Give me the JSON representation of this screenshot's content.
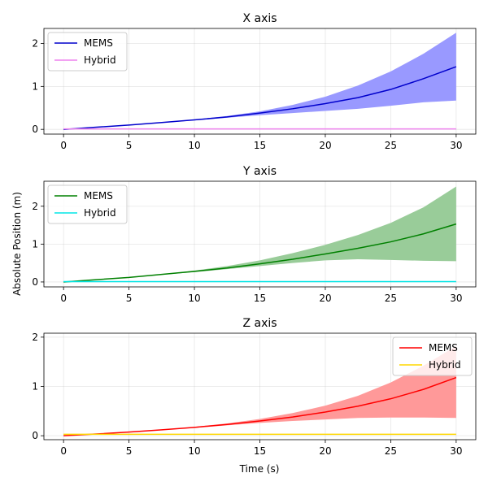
{
  "figure": {
    "ylabel": "Absolute Position (m)",
    "xlabel": "Time (s)"
  },
  "chart_data": [
    {
      "type": "line",
      "title": "X axis",
      "xlabel": "",
      "ylabel": "",
      "xlim": [
        -1.5,
        31.5
      ],
      "ylim": [
        -0.11,
        2.35
      ],
      "xticks": [
        0,
        5,
        10,
        15,
        20,
        25,
        30
      ],
      "yticks": [
        0,
        1,
        2
      ],
      "grid": true,
      "legend": "top-left",
      "x": [
        0,
        2.5,
        5,
        7.5,
        10,
        12.5,
        15,
        17.5,
        20,
        22.5,
        25,
        27.5,
        30
      ],
      "series": [
        {
          "name": "MEMS",
          "color": "#0000cc",
          "values": [
            0.0,
            0.05,
            0.1,
            0.16,
            0.22,
            0.29,
            0.38,
            0.48,
            0.6,
            0.74,
            0.93,
            1.18,
            1.46
          ],
          "band_lower": [
            0.0,
            0.05,
            0.1,
            0.15,
            0.21,
            0.27,
            0.33,
            0.38,
            0.43,
            0.48,
            0.55,
            0.63,
            0.67
          ],
          "band_upper": [
            0.0,
            0.05,
            0.1,
            0.16,
            0.23,
            0.31,
            0.42,
            0.57,
            0.76,
            1.02,
            1.35,
            1.76,
            2.25
          ],
          "band_color": "#9999ff"
        },
        {
          "name": "Hybrid",
          "color": "#ee82ee",
          "values": [
            0.01,
            0.01,
            0.01,
            0.01,
            0.01,
            0.01,
            0.01,
            0.01,
            0.01,
            0.01,
            0.01,
            0.01,
            0.01
          ]
        }
      ]
    },
    {
      "type": "line",
      "title": "Y axis",
      "xlabel": "",
      "ylabel": "",
      "xlim": [
        -1.5,
        31.5
      ],
      "ylim": [
        -0.13,
        2.66
      ],
      "xticks": [
        0,
        5,
        10,
        15,
        20,
        25,
        30
      ],
      "yticks": [
        0,
        1,
        2
      ],
      "grid": true,
      "legend": "top-left",
      "x": [
        0,
        2.5,
        5,
        7.5,
        10,
        12.5,
        15,
        17.5,
        20,
        22.5,
        25,
        27.5,
        30
      ],
      "series": [
        {
          "name": "MEMS",
          "color": "#008000",
          "values": [
            0.0,
            0.06,
            0.12,
            0.2,
            0.28,
            0.37,
            0.48,
            0.6,
            0.74,
            0.89,
            1.06,
            1.27,
            1.53
          ],
          "band_lower": [
            0.0,
            0.06,
            0.12,
            0.19,
            0.26,
            0.34,
            0.42,
            0.5,
            0.57,
            0.6,
            0.58,
            0.56,
            0.55
          ],
          "band_upper": [
            0.0,
            0.06,
            0.12,
            0.2,
            0.3,
            0.42,
            0.57,
            0.76,
            0.98,
            1.24,
            1.56,
            1.97,
            2.52
          ],
          "band_color": "#99cc99"
        },
        {
          "name": "Hybrid",
          "color": "#00e5e5",
          "values": [
            0.01,
            0.01,
            0.01,
            0.01,
            0.01,
            0.01,
            0.01,
            0.01,
            0.01,
            0.01,
            0.01,
            0.01,
            0.01
          ]
        }
      ]
    },
    {
      "type": "line",
      "title": "Z axis",
      "xlabel": "Time (s)",
      "ylabel": "",
      "xlim": [
        -1.5,
        31.5
      ],
      "ylim": [
        -0.08,
        2.08
      ],
      "xticks": [
        0,
        5,
        10,
        15,
        20,
        25,
        30
      ],
      "yticks": [
        0,
        1,
        2
      ],
      "grid": true,
      "legend": "top-right",
      "x": [
        0,
        2.5,
        5,
        7.5,
        10,
        12.5,
        15,
        17.5,
        20,
        22.5,
        25,
        27.5,
        30
      ],
      "series": [
        {
          "name": "MEMS",
          "color": "#ff0000",
          "values": [
            0.0,
            0.035,
            0.075,
            0.12,
            0.17,
            0.23,
            0.3,
            0.38,
            0.48,
            0.6,
            0.75,
            0.94,
            1.18
          ],
          "band_lower": [
            0.0,
            0.035,
            0.075,
            0.12,
            0.16,
            0.21,
            0.26,
            0.3,
            0.33,
            0.36,
            0.37,
            0.37,
            0.36
          ],
          "band_upper": [
            0.0,
            0.035,
            0.075,
            0.12,
            0.18,
            0.25,
            0.34,
            0.46,
            0.61,
            0.81,
            1.08,
            1.42,
            1.82
          ],
          "band_color": "#ff9999"
        },
        {
          "name": "Hybrid",
          "color": "#ffd700",
          "values": [
            0.03,
            0.03,
            0.03,
            0.03,
            0.03,
            0.03,
            0.03,
            0.03,
            0.03,
            0.03,
            0.03,
            0.03,
            0.03
          ]
        }
      ]
    }
  ]
}
